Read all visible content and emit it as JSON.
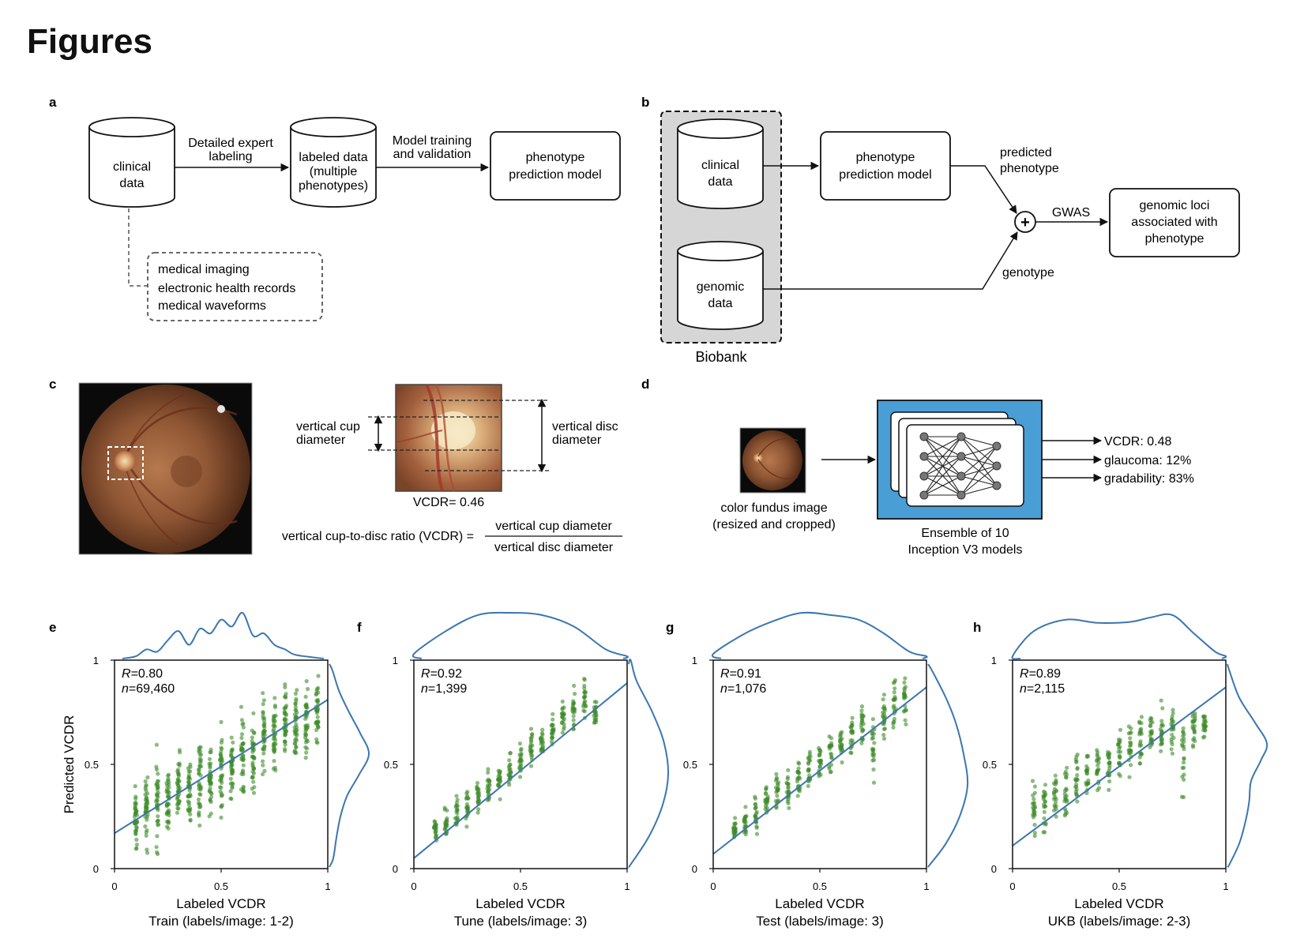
{
  "page": {
    "heading": "Figures"
  },
  "panel_a": {
    "letter": "a",
    "clinical_data": [
      "clinical",
      "data"
    ],
    "arrow1_label": [
      "Detailed expert",
      "labeling"
    ],
    "labeled_data": [
      "labeled data",
      "(multiple",
      "phenotypes)"
    ],
    "arrow2_label": [
      "Model training",
      "and validation"
    ],
    "model": [
      "phenotype",
      "prediction model"
    ],
    "sources": [
      "medical imaging",
      "electronic health records",
      "medical waveforms"
    ]
  },
  "panel_b": {
    "letter": "b",
    "clinical_data": [
      "clinical",
      "data"
    ],
    "genomic_data": [
      "genomic",
      "data"
    ],
    "biobank": "Biobank",
    "model": [
      "phenotype",
      "prediction model"
    ],
    "predicted_label": [
      "predicted",
      "phenotype"
    ],
    "genotype_label": "genotype",
    "gwas_label": "GWAS",
    "result": [
      "genomic loci",
      "associated with",
      "phenotype"
    ],
    "combine_symbol": "+"
  },
  "panel_c": {
    "letter": "c",
    "cup_label": [
      "vertical cup",
      "diameter"
    ],
    "disc_label": [
      "vertical disc",
      "diameter"
    ],
    "vcdr_value": "VCDR= 0.46",
    "formula_lhs": "vertical cup-to-disc ratio (VCDR) =",
    "formula_num": "vertical cup diameter",
    "formula_den": "vertical disc diameter"
  },
  "panel_d": {
    "letter": "d",
    "input_caption": [
      "color fundus image",
      "(resized and cropped)"
    ],
    "ensemble_caption": [
      "Ensemble of 10",
      "Inception V3 models"
    ],
    "outputs": [
      "VCDR: 0.48",
      "glaucoma: 12%",
      "gradability: 83%"
    ]
  },
  "chart_data": [
    {
      "panel": "e",
      "type": "scatter",
      "caption": "Train (labels/image: 1-2)",
      "xlabel": "Labeled VCDR",
      "ylabel": "Predicted VCDR",
      "xlim": [
        0,
        1
      ],
      "ylim": [
        0,
        1
      ],
      "x_ticks": [
        "0",
        "0.5",
        "1"
      ],
      "y_ticks": [
        "0",
        "0.5",
        "1"
      ],
      "r_label": "R",
      "r_value": "=0.80",
      "n_label": "n",
      "n_value": "=69,460",
      "fit_line": [
        [
          0,
          0.17
        ],
        [
          1,
          0.81
        ]
      ],
      "x_levels": [
        0.1,
        0.15,
        0.2,
        0.25,
        0.3,
        0.35,
        0.4,
        0.45,
        0.5,
        0.55,
        0.6,
        0.65,
        0.7,
        0.75,
        0.8,
        0.85,
        0.9,
        0.95
      ],
      "y_ranges": [
        [
          0.0,
          0.48
        ],
        [
          0.05,
          0.5
        ],
        [
          0.05,
          0.62
        ],
        [
          0.1,
          0.55
        ],
        [
          0.1,
          0.68
        ],
        [
          0.15,
          0.62
        ],
        [
          0.12,
          0.74
        ],
        [
          0.2,
          0.7
        ],
        [
          0.2,
          0.78
        ],
        [
          0.25,
          0.72
        ],
        [
          0.22,
          0.87
        ],
        [
          0.3,
          0.8
        ],
        [
          0.35,
          0.93
        ],
        [
          0.4,
          0.88
        ],
        [
          0.45,
          0.98
        ],
        [
          0.45,
          0.95
        ],
        [
          0.45,
          0.98
        ],
        [
          0.5,
          0.98
        ]
      ],
      "density_x": [
        [
          0.1,
          0.05
        ],
        [
          0.15,
          0.2
        ],
        [
          0.2,
          0.15
        ],
        [
          0.25,
          0.4
        ],
        [
          0.3,
          0.6
        ],
        [
          0.35,
          0.3
        ],
        [
          0.4,
          0.65
        ],
        [
          0.45,
          0.55
        ],
        [
          0.5,
          0.85
        ],
        [
          0.55,
          0.7
        ],
        [
          0.6,
          1.0
        ],
        [
          0.65,
          0.5
        ],
        [
          0.7,
          0.55
        ],
        [
          0.75,
          0.3
        ],
        [
          0.8,
          0.2
        ],
        [
          0.85,
          0.08
        ]
      ],
      "density_y": [
        [
          0.05,
          0.1
        ],
        [
          0.15,
          0.18
        ],
        [
          0.25,
          0.28
        ],
        [
          0.35,
          0.45
        ],
        [
          0.45,
          0.75
        ],
        [
          0.55,
          1.0
        ],
        [
          0.65,
          0.78
        ],
        [
          0.75,
          0.5
        ],
        [
          0.85,
          0.25
        ],
        [
          0.95,
          0.08
        ]
      ]
    },
    {
      "panel": "f",
      "type": "scatter",
      "caption": "Tune (labels/image: 3)",
      "xlabel": "Labeled VCDR",
      "ylabel": "",
      "xlim": [
        0,
        1
      ],
      "ylim": [
        0,
        1
      ],
      "x_ticks": [
        "0",
        "0.5",
        "1"
      ],
      "y_ticks": [
        "0",
        "0.5",
        "1"
      ],
      "r_label": "R",
      "r_value": "=0.92",
      "n_label": "n",
      "n_value": "=1,399",
      "fit_line": [
        [
          0,
          0.05
        ],
        [
          1,
          0.89
        ]
      ],
      "x_levels": [
        0.1,
        0.15,
        0.2,
        0.25,
        0.3,
        0.35,
        0.4,
        0.45,
        0.5,
        0.55,
        0.6,
        0.65,
        0.7,
        0.75,
        0.8,
        0.85
      ],
      "y_ranges": [
        [
          0.1,
          0.28
        ],
        [
          0.12,
          0.33
        ],
        [
          0.15,
          0.38
        ],
        [
          0.18,
          0.42
        ],
        [
          0.22,
          0.46
        ],
        [
          0.27,
          0.5
        ],
        [
          0.3,
          0.55
        ],
        [
          0.35,
          0.6
        ],
        [
          0.4,
          0.64
        ],
        [
          0.45,
          0.7
        ],
        [
          0.5,
          0.72
        ],
        [
          0.55,
          0.78
        ],
        [
          0.6,
          0.85
        ],
        [
          0.6,
          0.9
        ],
        [
          0.65,
          0.97
        ],
        [
          0.65,
          0.85
        ]
      ],
      "density_x": [
        [
          0.0,
          0.1
        ],
        [
          0.15,
          0.6
        ],
        [
          0.3,
          0.95
        ],
        [
          0.45,
          1.0
        ],
        [
          0.6,
          0.95
        ],
        [
          0.75,
          0.7
        ],
        [
          0.9,
          0.2
        ],
        [
          1.0,
          0.05
        ]
      ],
      "density_y": [
        [
          0.02,
          0.05
        ],
        [
          0.15,
          0.5
        ],
        [
          0.3,
          0.85
        ],
        [
          0.45,
          1.0
        ],
        [
          0.6,
          0.9
        ],
        [
          0.75,
          0.6
        ],
        [
          0.9,
          0.2
        ],
        [
          1.0,
          0.05
        ]
      ]
    },
    {
      "panel": "g",
      "type": "scatter",
      "caption": "Test (labels/image: 3)",
      "xlabel": "Labeled VCDR",
      "ylabel": "",
      "xlim": [
        0,
        1
      ],
      "ylim": [
        0,
        1
      ],
      "x_ticks": [
        "0",
        "0.5",
        "1"
      ],
      "y_ticks": [
        "0",
        "0.5",
        "1"
      ],
      "r_label": "R",
      "r_value": "=0.91",
      "n_label": "n",
      "n_value": "=1,076",
      "fit_line": [
        [
          0,
          0.07
        ],
        [
          1,
          0.87
        ]
      ],
      "x_levels": [
        0.1,
        0.15,
        0.2,
        0.25,
        0.3,
        0.35,
        0.4,
        0.45,
        0.5,
        0.55,
        0.6,
        0.65,
        0.7,
        0.75,
        0.8,
        0.85,
        0.9
      ],
      "y_ranges": [
        [
          0.1,
          0.27
        ],
        [
          0.12,
          0.32
        ],
        [
          0.15,
          0.38
        ],
        [
          0.2,
          0.42
        ],
        [
          0.22,
          0.48
        ],
        [
          0.25,
          0.52
        ],
        [
          0.3,
          0.55
        ],
        [
          0.35,
          0.6
        ],
        [
          0.4,
          0.62
        ],
        [
          0.42,
          0.7
        ],
        [
          0.48,
          0.72
        ],
        [
          0.5,
          0.76
        ],
        [
          0.55,
          0.82
        ],
        [
          0.32,
          0.88
        ],
        [
          0.58,
          0.9
        ],
        [
          0.6,
          0.95
        ],
        [
          0.65,
          0.97
        ]
      ],
      "density_x": [
        [
          0.0,
          0.1
        ],
        [
          0.15,
          0.55
        ],
        [
          0.3,
          0.85
        ],
        [
          0.42,
          1.0
        ],
        [
          0.55,
          0.95
        ],
        [
          0.68,
          0.85
        ],
        [
          0.8,
          0.55
        ],
        [
          0.92,
          0.15
        ],
        [
          1.0,
          0.05
        ]
      ],
      "density_y": [
        [
          0.02,
          0.05
        ],
        [
          0.12,
          0.45
        ],
        [
          0.25,
          0.8
        ],
        [
          0.4,
          1.0
        ],
        [
          0.55,
          0.9
        ],
        [
          0.7,
          0.7
        ],
        [
          0.82,
          0.45
        ],
        [
          0.95,
          0.1
        ]
      ]
    },
    {
      "panel": "h",
      "type": "scatter",
      "caption": "UKB (labels/image: 2-3)",
      "xlabel": "Labeled VCDR",
      "ylabel": "",
      "xlim": [
        0,
        1
      ],
      "ylim": [
        0,
        1
      ],
      "x_ticks": [
        "0",
        "0.5",
        "1"
      ],
      "y_ticks": [
        "0",
        "0.5",
        "1"
      ],
      "r_label": "R",
      "r_value": "=0.89",
      "n_label": "n",
      "n_value": "=2,115",
      "fit_line": [
        [
          0,
          0.11
        ],
        [
          1,
          0.87
        ]
      ],
      "x_levels": [
        0.1,
        0.15,
        0.2,
        0.25,
        0.3,
        0.35,
        0.4,
        0.45,
        0.5,
        0.55,
        0.6,
        0.65,
        0.7,
        0.75,
        0.8,
        0.85,
        0.9
      ],
      "y_ranges": [
        [
          0.08,
          0.45
        ],
        [
          0.1,
          0.5
        ],
        [
          0.15,
          0.52
        ],
        [
          0.18,
          0.56
        ],
        [
          0.22,
          0.6
        ],
        [
          0.28,
          0.63
        ],
        [
          0.3,
          0.65
        ],
        [
          0.35,
          0.7
        ],
        [
          0.38,
          0.72
        ],
        [
          0.42,
          0.75
        ],
        [
          0.45,
          0.78
        ],
        [
          0.5,
          0.8
        ],
        [
          0.5,
          0.82
        ],
        [
          0.52,
          0.82
        ],
        [
          0.25,
          0.8
        ],
        [
          0.55,
          0.8
        ],
        [
          0.6,
          0.78
        ]
      ],
      "density_x": [
        [
          0.0,
          0.05
        ],
        [
          0.1,
          0.6
        ],
        [
          0.25,
          0.85
        ],
        [
          0.4,
          0.78
        ],
        [
          0.55,
          0.8
        ],
        [
          0.65,
          0.9
        ],
        [
          0.75,
          0.95
        ],
        [
          0.85,
          0.55
        ],
        [
          0.95,
          0.15
        ],
        [
          1.0,
          0.05
        ]
      ],
      "density_y": [
        [
          0.02,
          0.05
        ],
        [
          0.12,
          0.3
        ],
        [
          0.22,
          0.45
        ],
        [
          0.32,
          0.55
        ],
        [
          0.42,
          0.6
        ],
        [
          0.52,
          0.85
        ],
        [
          0.6,
          1.0
        ],
        [
          0.7,
          0.7
        ],
        [
          0.82,
          0.3
        ],
        [
          0.95,
          0.05
        ]
      ]
    }
  ],
  "colors": {
    "point": "#3f8c2c",
    "fit": "#3b76b0",
    "density": "#3b76b0",
    "ensemble_bg": "#4a9ed6",
    "biobank_bg": "#d6d6d6"
  }
}
